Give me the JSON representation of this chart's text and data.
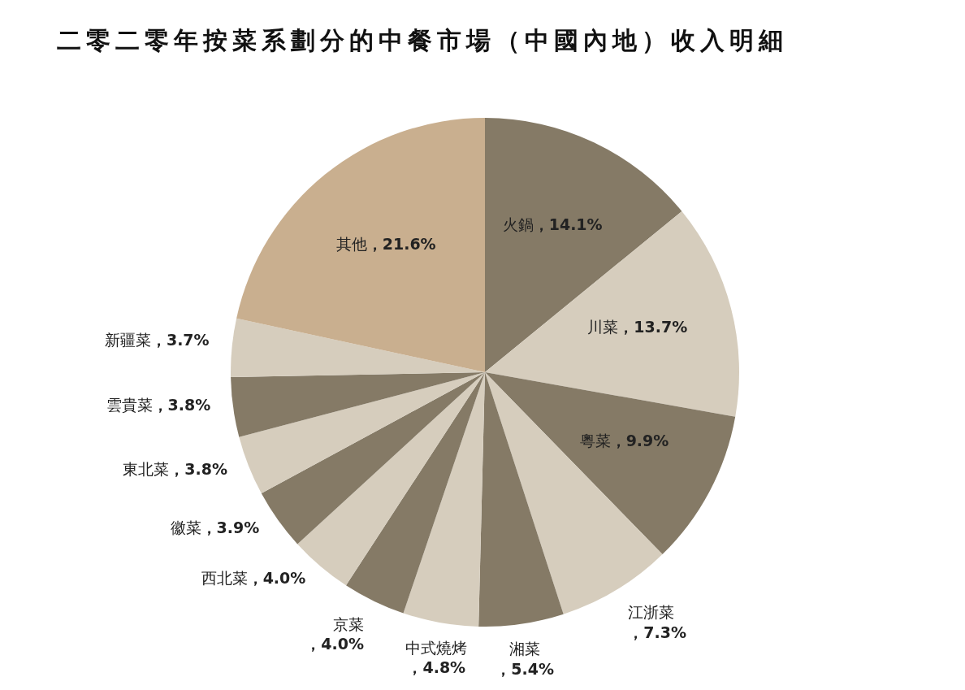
{
  "chart_data": {
    "type": "pie",
    "title": "二零二零年按菜系劃分的中餐市場（中國內地）收入明細",
    "categories": [
      "火鍋",
      "川菜",
      "粵菜",
      "江浙菜",
      "湘菜",
      "中式燒烤",
      "京菜",
      "西北菜",
      "徽菜",
      "東北菜",
      "雲貴菜",
      "新疆菜",
      "其他"
    ],
    "values": [
      14.1,
      13.7,
      9.9,
      7.3,
      5.4,
      4.8,
      4.0,
      4.0,
      3.9,
      3.8,
      3.8,
      3.7,
      21.6
    ],
    "value_labels": [
      "，14.1%",
      "，13.7%",
      "，9.9%",
      "，7.3%",
      "，5.4%",
      "，4.8%",
      "，4.0%",
      "，4.0%",
      "，3.9%",
      "，3.8%",
      "，3.8%",
      "，3.7%",
      "，21.6%"
    ],
    "colors": [
      "#857a66",
      "#d6cdbd",
      "#857a66",
      "#d6cdbd",
      "#857a66",
      "#d6cdbd",
      "#857a66",
      "#d6cdbd",
      "#857a66",
      "#d6cdbd",
      "#857a66",
      "#d6cdbd",
      "#c9af8f"
    ]
  }
}
